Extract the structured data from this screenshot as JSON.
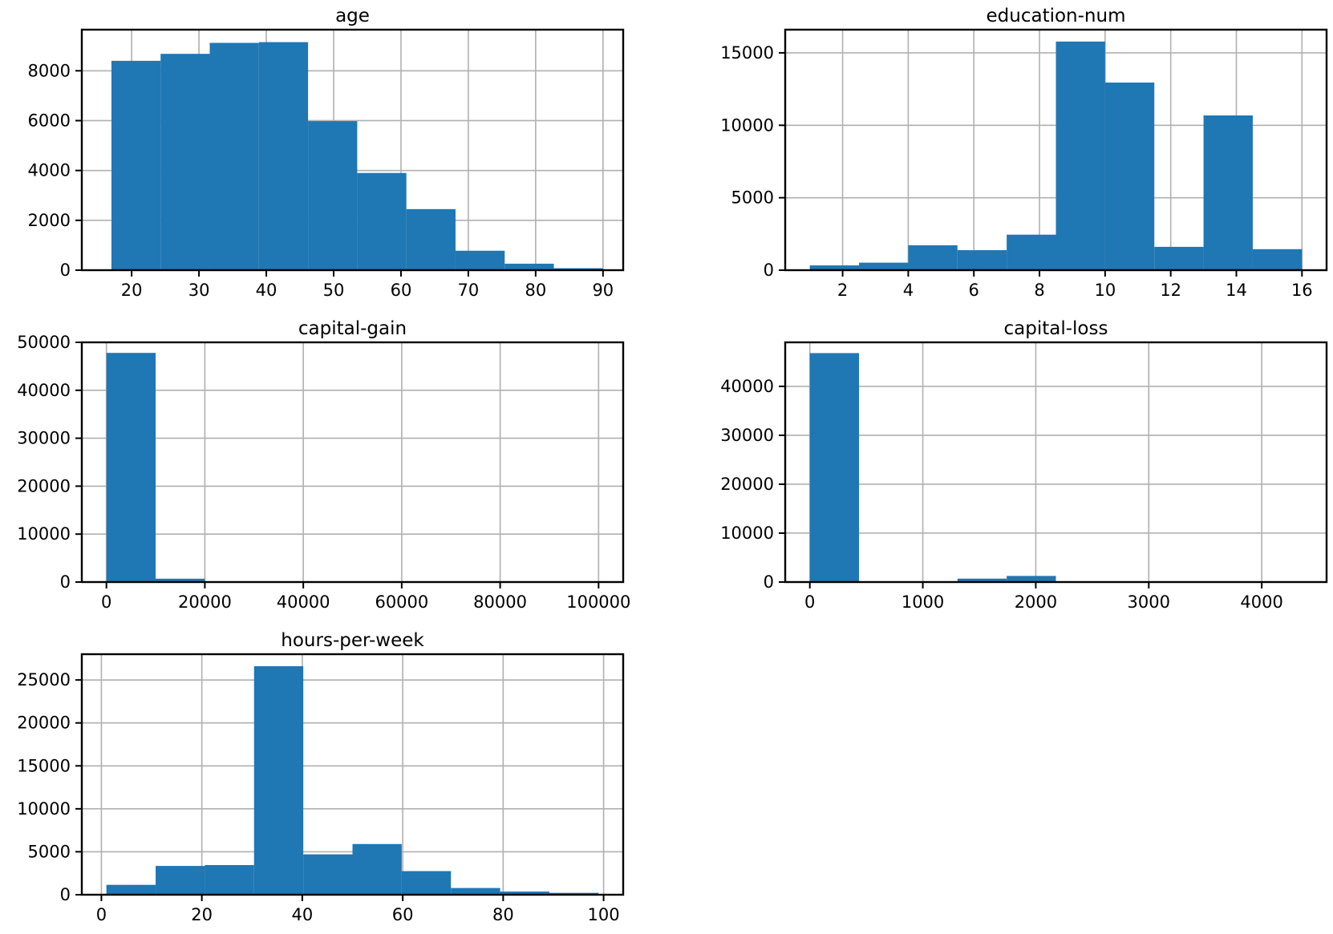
{
  "chart_data": [
    {
      "type": "bar",
      "title": "age",
      "bar_color": "#1f77b4",
      "bins": [
        {
          "x0": 17.0,
          "x1": 24.3,
          "count": 8400
        },
        {
          "x0": 24.3,
          "x1": 31.6,
          "count": 8680
        },
        {
          "x0": 31.6,
          "x1": 38.9,
          "count": 9120
        },
        {
          "x0": 38.9,
          "x1": 46.2,
          "count": 9150
        },
        {
          "x0": 46.2,
          "x1": 53.5,
          "count": 5980
        },
        {
          "x0": 53.5,
          "x1": 60.8,
          "count": 3900
        },
        {
          "x0": 60.8,
          "x1": 68.1,
          "count": 2450
        },
        {
          "x0": 68.1,
          "x1": 75.4,
          "count": 780
        },
        {
          "x0": 75.4,
          "x1": 82.7,
          "count": 260
        },
        {
          "x0": 82.7,
          "x1": 90.0,
          "count": 80
        }
      ],
      "xlim": [
        12.6,
        93.0
      ],
      "ylim": [
        0,
        9650
      ],
      "xticks": [
        20,
        30,
        40,
        50,
        60,
        70,
        80,
        90
      ],
      "xtick_labels": [
        "20",
        "30",
        "40",
        "50",
        "60",
        "70",
        "80",
        "90"
      ],
      "yticks": [
        0,
        2000,
        4000,
        6000,
        8000
      ],
      "ytick_labels": [
        "0",
        "2000",
        "4000",
        "6000",
        "8000"
      ],
      "grid": true
    },
    {
      "type": "bar",
      "title": "education-num",
      "bar_color": "#1f77b4",
      "bins": [
        {
          "x0": 1.0,
          "x1": 2.5,
          "count": 330
        },
        {
          "x0": 2.5,
          "x1": 4.0,
          "count": 520
        },
        {
          "x0": 4.0,
          "x1": 5.5,
          "count": 1720
        },
        {
          "x0": 5.5,
          "x1": 7.0,
          "count": 1380
        },
        {
          "x0": 7.0,
          "x1": 8.5,
          "count": 2450
        },
        {
          "x0": 8.5,
          "x1": 10.0,
          "count": 15780
        },
        {
          "x0": 10.0,
          "x1": 11.5,
          "count": 12950
        },
        {
          "x0": 11.5,
          "x1": 13.0,
          "count": 1610
        },
        {
          "x0": 13.0,
          "x1": 14.5,
          "count": 10680
        },
        {
          "x0": 14.5,
          "x1": 16.0,
          "count": 1450
        }
      ],
      "xlim": [
        0.25,
        16.75
      ],
      "ylim": [
        0,
        16600
      ],
      "xticks": [
        2,
        4,
        6,
        8,
        10,
        12,
        14,
        16
      ],
      "xtick_labels": [
        "2",
        "4",
        "6",
        "8",
        "10",
        "12",
        "14",
        "16"
      ],
      "yticks": [
        0,
        5000,
        10000,
        15000
      ],
      "ytick_labels": [
        "0",
        "5000",
        "10000",
        "15000"
      ],
      "grid": true
    },
    {
      "type": "bar",
      "title": "capital-gain",
      "bar_color": "#1f77b4",
      "bins": [
        {
          "x0": 0,
          "x1": 9999.9,
          "count": 47800
        },
        {
          "x0": 9999.9,
          "x1": 19999.8,
          "count": 700
        },
        {
          "x0": 19999.8,
          "x1": 29999.7,
          "count": 0
        },
        {
          "x0": 29999.7,
          "x1": 39999.6,
          "count": 0
        },
        {
          "x0": 39999.6,
          "x1": 49999.5,
          "count": 0
        },
        {
          "x0": 49999.5,
          "x1": 59999.4,
          "count": 0
        },
        {
          "x0": 59999.4,
          "x1": 69999.3,
          "count": 0
        },
        {
          "x0": 69999.3,
          "x1": 79999.2,
          "count": 0
        },
        {
          "x0": 79999.2,
          "x1": 89999.1,
          "count": 0
        },
        {
          "x0": 89999.1,
          "x1": 99999.0,
          "count": 0
        }
      ],
      "xlim": [
        -5000,
        105000
      ],
      "ylim": [
        0,
        50000
      ],
      "xticks": [
        0,
        20000,
        40000,
        60000,
        80000,
        100000
      ],
      "xtick_labels": [
        "0",
        "20000",
        "40000",
        "60000",
        "80000",
        "100000"
      ],
      "yticks": [
        0,
        10000,
        20000,
        30000,
        40000,
        50000
      ],
      "ytick_labels": [
        "0",
        "10000",
        "20000",
        "30000",
        "40000",
        "50000"
      ],
      "grid": true
    },
    {
      "type": "bar",
      "title": "capital-loss",
      "bar_color": "#1f77b4",
      "bins": [
        {
          "x0": 0,
          "x1": 435.6,
          "count": 46800
        },
        {
          "x0": 435.6,
          "x1": 871.2,
          "count": 0
        },
        {
          "x0": 871.2,
          "x1": 1306.8,
          "count": 0
        },
        {
          "x0": 1306.8,
          "x1": 1742.4,
          "count": 700
        },
        {
          "x0": 1742.4,
          "x1": 2178.0,
          "count": 1250
        },
        {
          "x0": 2178.0,
          "x1": 2613.6,
          "count": 0
        },
        {
          "x0": 2613.6,
          "x1": 3049.2,
          "count": 0
        },
        {
          "x0": 3049.2,
          "x1": 3484.8,
          "count": 0
        },
        {
          "x0": 3484.8,
          "x1": 3920.4,
          "count": 0
        },
        {
          "x0": 3920.4,
          "x1": 4356.0,
          "count": 0
        }
      ],
      "xlim": [
        -218,
        4574
      ],
      "ylim": [
        0,
        49000
      ],
      "xticks": [
        0,
        1000,
        2000,
        3000,
        4000
      ],
      "xtick_labels": [
        "0",
        "1000",
        "2000",
        "3000",
        "4000"
      ],
      "yticks": [
        0,
        10000,
        20000,
        30000,
        40000
      ],
      "ytick_labels": [
        "0",
        "10000",
        "20000",
        "30000",
        "40000"
      ],
      "grid": true
    },
    {
      "type": "bar",
      "title": "hours-per-week",
      "bar_color": "#1f77b4",
      "bins": [
        {
          "x0": 1.0,
          "x1": 10.8,
          "count": 1150
        },
        {
          "x0": 10.8,
          "x1": 20.6,
          "count": 3350
        },
        {
          "x0": 20.6,
          "x1": 30.4,
          "count": 3450
        },
        {
          "x0": 30.4,
          "x1": 40.2,
          "count": 26600
        },
        {
          "x0": 40.2,
          "x1": 50.0,
          "count": 4700
        },
        {
          "x0": 50.0,
          "x1": 59.8,
          "count": 5900
        },
        {
          "x0": 59.8,
          "x1": 69.6,
          "count": 2750
        },
        {
          "x0": 69.6,
          "x1": 79.4,
          "count": 780
        },
        {
          "x0": 79.4,
          "x1": 89.2,
          "count": 370
        },
        {
          "x0": 89.2,
          "x1": 99.0,
          "count": 220
        }
      ],
      "xlim": [
        -3.9,
        103.9
      ],
      "ylim": [
        0,
        28000
      ],
      "xticks": [
        0,
        20,
        40,
        60,
        80,
        100
      ],
      "xtick_labels": [
        "0",
        "20",
        "40",
        "60",
        "80",
        "100"
      ],
      "yticks": [
        0,
        5000,
        10000,
        15000,
        20000,
        25000
      ],
      "ytick_labels": [
        "0",
        "5000",
        "10000",
        "15000",
        "20000",
        "25000"
      ],
      "grid": true
    }
  ]
}
